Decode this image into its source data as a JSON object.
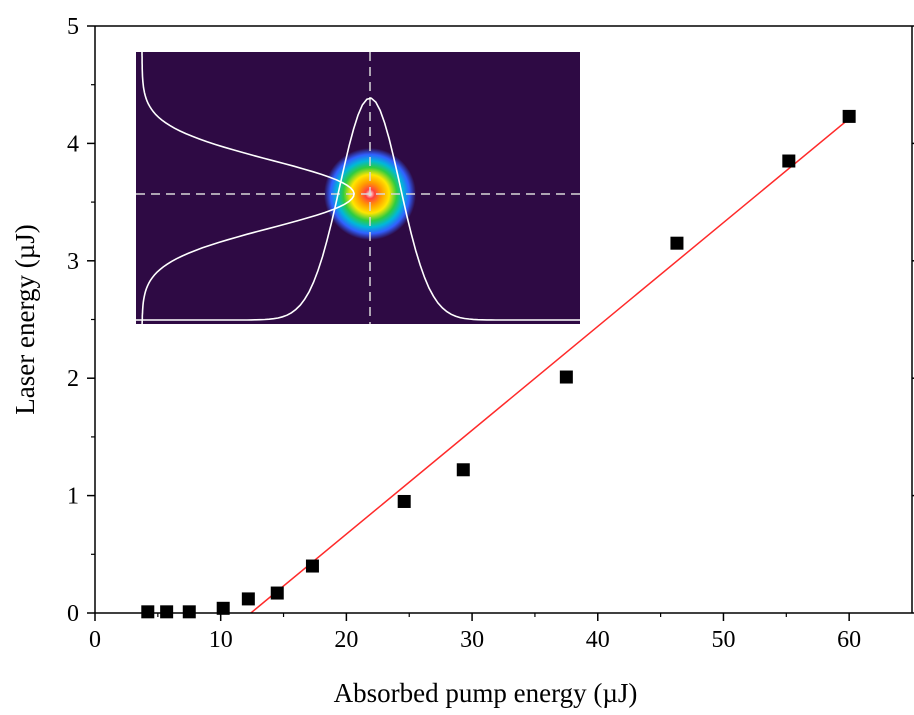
{
  "chart_data": {
    "type": "scatter",
    "title": "",
    "xlabel": "Absorbed pump energy (µJ)",
    "ylabel": "Laser energy (µJ)",
    "xlim": [
      0,
      65
    ],
    "ylim": [
      0,
      5
    ],
    "xticks": [
      "0",
      "10",
      "20",
      "30",
      "40",
      "50",
      "60"
    ],
    "yticks": [
      "0",
      "1",
      "2",
      "3",
      "4",
      "5"
    ],
    "grid": false,
    "legend": "none",
    "series": [
      {
        "kind": "scatter",
        "marker": "square",
        "color": "#000000",
        "x": [
          4.2,
          5.7,
          7.5,
          10.2,
          12.2,
          14.5,
          17.3,
          24.6,
          29.3,
          37.5,
          46.3,
          55.2,
          60.0
        ],
        "y": [
          0.01,
          0.01,
          0.01,
          0.04,
          0.12,
          0.17,
          0.4,
          0.95,
          1.22,
          2.01,
          3.15,
          3.85,
          4.23
        ]
      },
      {
        "kind": "line",
        "fit": "linear",
        "color": "#ff2a2a",
        "x": [
          12.4,
          60.0
        ],
        "y": [
          0.0,
          4.21
        ]
      }
    ],
    "inset": {
      "kind": "beam-profile-image",
      "colormap": "rainbow on dark purple",
      "background": "#2e0a44",
      "crosshair": "dashed",
      "profiles": [
        "horizontal",
        "vertical"
      ]
    }
  }
}
